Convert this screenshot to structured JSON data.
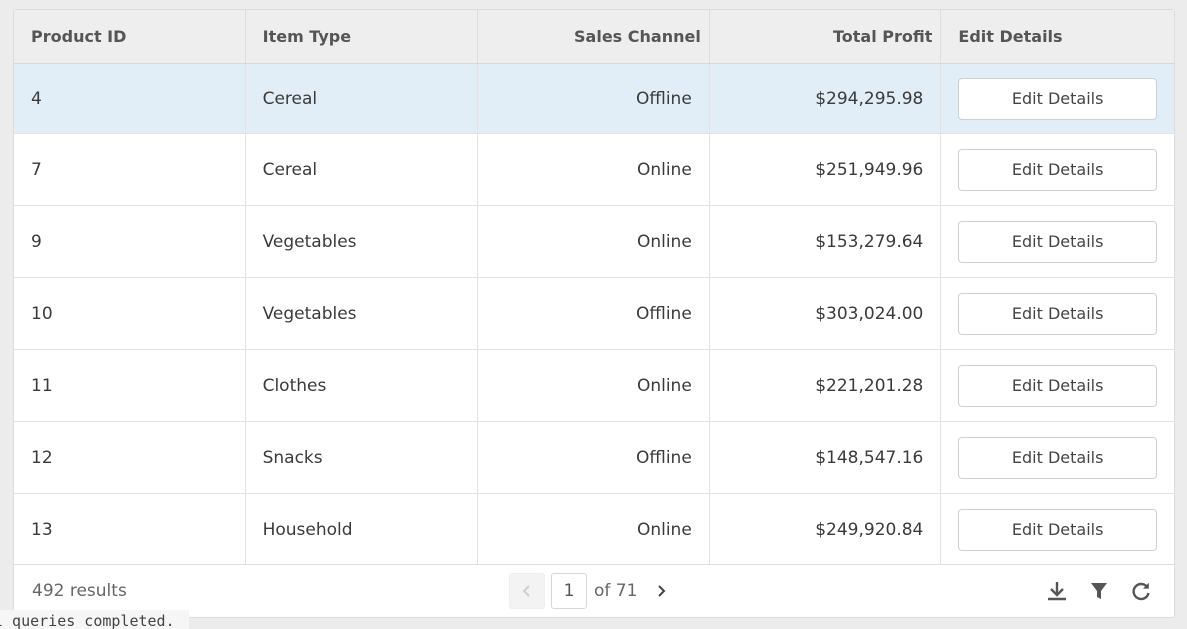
{
  "columns": [
    "Product ID",
    "Item Type",
    "Sales Channel",
    "Total Profit",
    "Edit Details"
  ],
  "rows": [
    {
      "id": "4",
      "type": "Cereal",
      "channel": "Offline",
      "profit": "$294,295.98",
      "action": "Edit Details"
    },
    {
      "id": "7",
      "type": "Cereal",
      "channel": "Online",
      "profit": "$251,949.96",
      "action": "Edit Details"
    },
    {
      "id": "9",
      "type": "Vegetables",
      "channel": "Online",
      "profit": "$153,279.64",
      "action": "Edit Details"
    },
    {
      "id": "10",
      "type": "Vegetables",
      "channel": "Offline",
      "profit": "$303,024.00",
      "action": "Edit Details"
    },
    {
      "id": "11",
      "type": "Clothes",
      "channel": "Online",
      "profit": "$221,201.28",
      "action": "Edit Details"
    },
    {
      "id": "12",
      "type": "Snacks",
      "channel": "Offline",
      "profit": "$148,547.16",
      "action": "Edit Details"
    },
    {
      "id": "13",
      "type": "Household",
      "channel": "Online",
      "profit": "$249,920.84",
      "action": "Edit Details"
    }
  ],
  "selected_row_index": 0,
  "footer": {
    "results": "492 results",
    "page": "1",
    "of_pages": "of 71"
  },
  "icons": {
    "prev": "chevron-left-icon",
    "next": "chevron-right-icon",
    "download": "download-icon",
    "filter": "filter-icon",
    "refresh": "refresh-icon"
  },
  "colors": {
    "selected_row": "#e1eef8",
    "header_bg": "#eeeeee",
    "icon": "#555555"
  },
  "console": {
    "text": "l queries completed."
  }
}
